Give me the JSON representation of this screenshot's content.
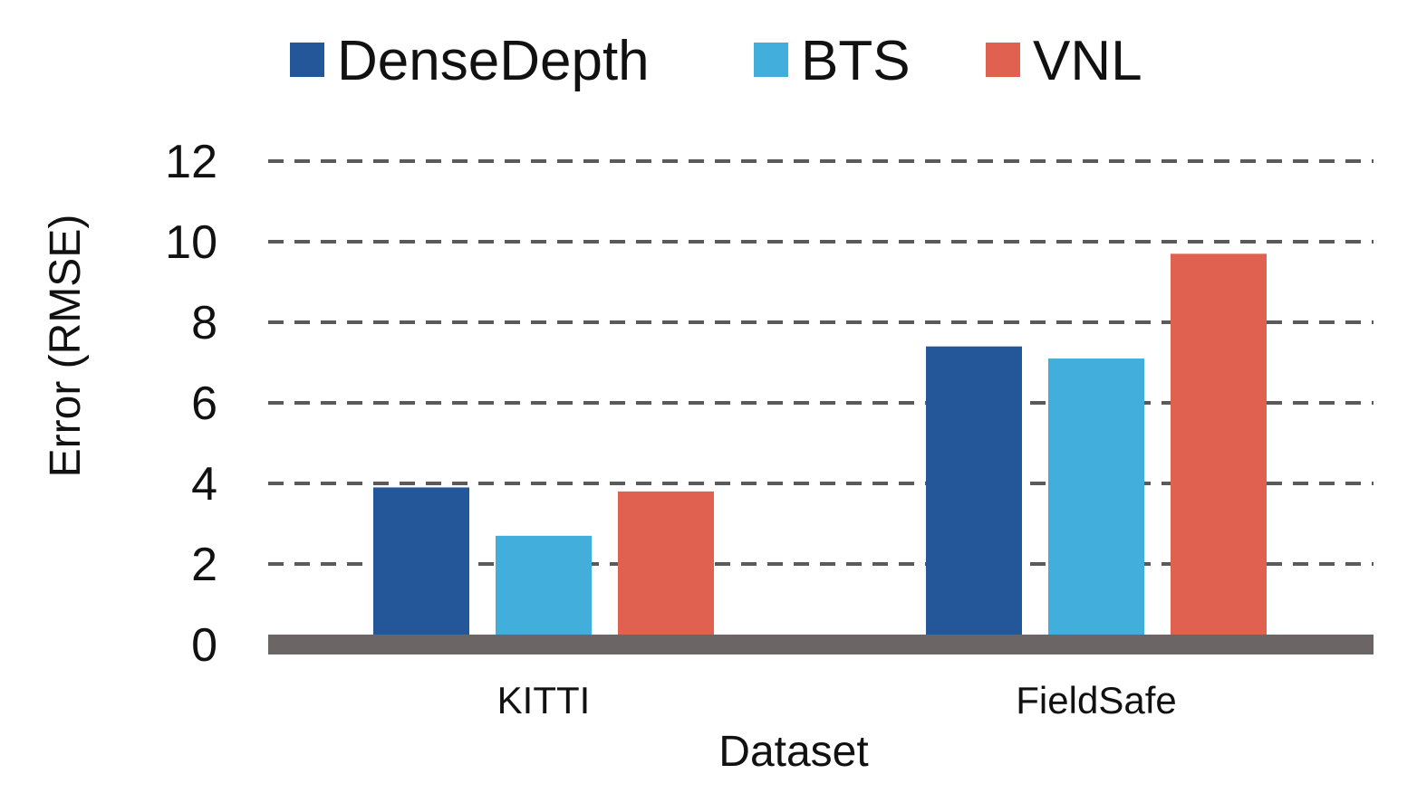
{
  "chart_data": {
    "type": "bar",
    "categories": [
      "KITTI",
      "FieldSafe"
    ],
    "series": [
      {
        "name": "DenseDepth",
        "values": [
          3.9,
          7.4
        ],
        "color": "#245799"
      },
      {
        "name": "BTS",
        "values": [
          2.7,
          7.1
        ],
        "color": "#42AEDB"
      },
      {
        "name": "VNL",
        "values": [
          3.8,
          9.7
        ],
        "color": "#E06150"
      }
    ],
    "title": "",
    "xlabel": "Dataset",
    "ylabel": "Error (RMSE)",
    "ylim": [
      0,
      12
    ],
    "yticks": [
      0,
      2,
      4,
      6,
      8,
      10,
      12
    ],
    "grid": true,
    "grid_style": "dashed",
    "legend_position": "top-center",
    "colors": {
      "grid": "#5a5a5a",
      "baseline": "#6b6565",
      "text": "#111111"
    }
  }
}
